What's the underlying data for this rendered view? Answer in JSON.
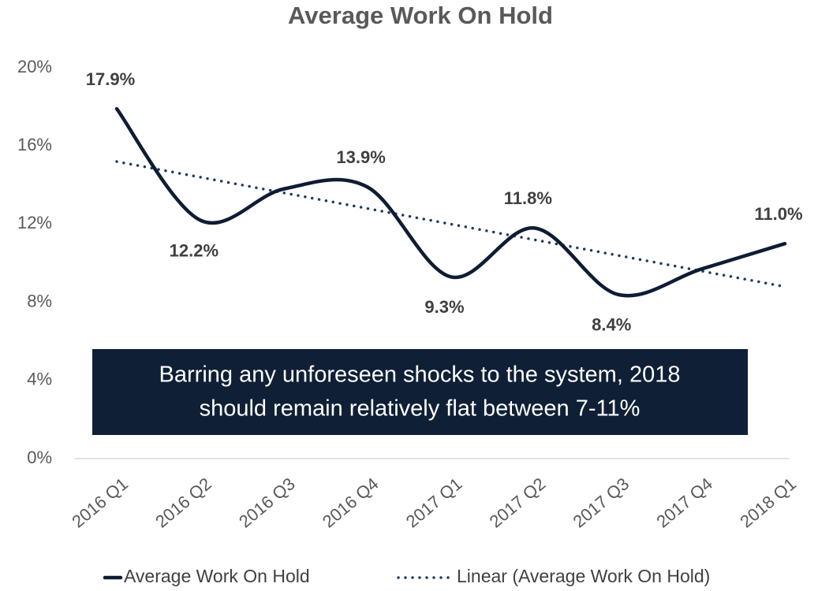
{
  "chart_data": {
    "type": "line",
    "title": "Average Work On Hold",
    "categories": [
      "2016 Q1",
      "2016 Q2",
      "2016 Q3",
      "2016 Q4",
      "2017 Q1",
      "2017 Q2",
      "2017 Q3",
      "2017 Q4",
      "2018 Q1"
    ],
    "series": [
      {
        "name": "Average Work On Hold",
        "color": "#0f1c33",
        "style": "solid",
        "values": [
          17.9,
          12.2,
          13.8,
          13.9,
          9.3,
          11.8,
          8.4,
          9.7,
          11.0
        ],
        "value_labels": [
          "17.9%",
          "12.2%",
          null,
          "13.9%",
          "9.3%",
          "11.8%",
          "8.4%",
          null,
          "11.0%"
        ]
      },
      {
        "name": "Linear (Average Work On Hold)",
        "color": "#1f3a5f",
        "style": "dotted",
        "values": [
          15.2,
          14.4,
          13.6,
          12.8,
          12.0,
          11.2,
          10.4,
          9.6,
          8.8
        ]
      }
    ],
    "ylim": [
      0,
      20
    ],
    "yticks": [
      {
        "value": 0,
        "label": "0%"
      },
      {
        "value": 4,
        "label": "4%"
      },
      {
        "value": 8,
        "label": "8%"
      },
      {
        "value": 12,
        "label": "12%"
      },
      {
        "value": 16,
        "label": "16%"
      },
      {
        "value": 20,
        "label": "20%"
      }
    ],
    "grid": false,
    "legend": "bottom",
    "annotation": [
      "Barring any unforeseen shocks to the system, 2018",
      "should remain relatively flat between 7-11%"
    ]
  }
}
